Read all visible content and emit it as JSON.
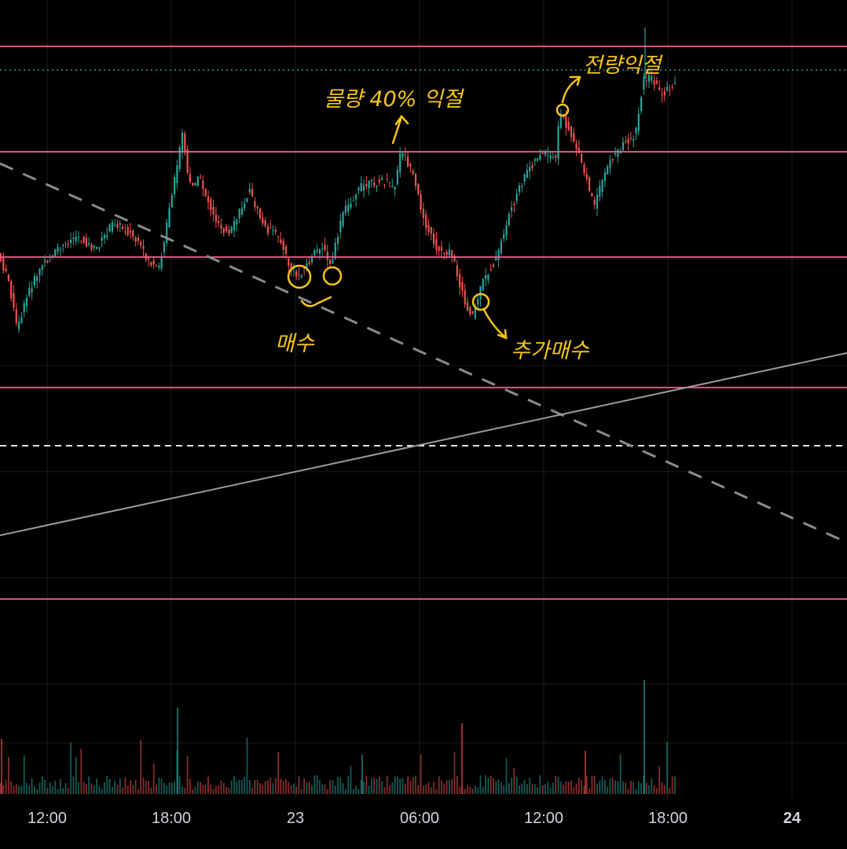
{
  "chart_data": {
    "type": "candlestick",
    "x_ticks": [
      {
        "label": "12:00",
        "bold": false
      },
      {
        "label": "18:00",
        "bold": false
      },
      {
        "label": "23",
        "bold": false
      },
      {
        "label": "06:00",
        "bold": false
      },
      {
        "label": "12:00",
        "bold": false
      },
      {
        "label": "18:00",
        "bold": false
      },
      {
        "label": "24",
        "bold": true
      }
    ],
    "colors": {
      "background": "#000000",
      "up": "#26a69a",
      "down": "#ef5350",
      "level_line": "#f06292",
      "annotation": "#f5c518",
      "grid": "#1c1c1c",
      "dotted_line": "#26a69a"
    },
    "horizontal_levels": [
      "level-1",
      "level-2",
      "level-3",
      "level-4",
      "level-5"
    ],
    "annotations": [
      {
        "id": "buy",
        "text": "매수"
      },
      {
        "id": "take-profit-40",
        "text": "물량 40% 익절"
      },
      {
        "id": "add-buy",
        "text": "추가매수"
      },
      {
        "id": "full-profit",
        "text": "전량익절"
      }
    ]
  }
}
